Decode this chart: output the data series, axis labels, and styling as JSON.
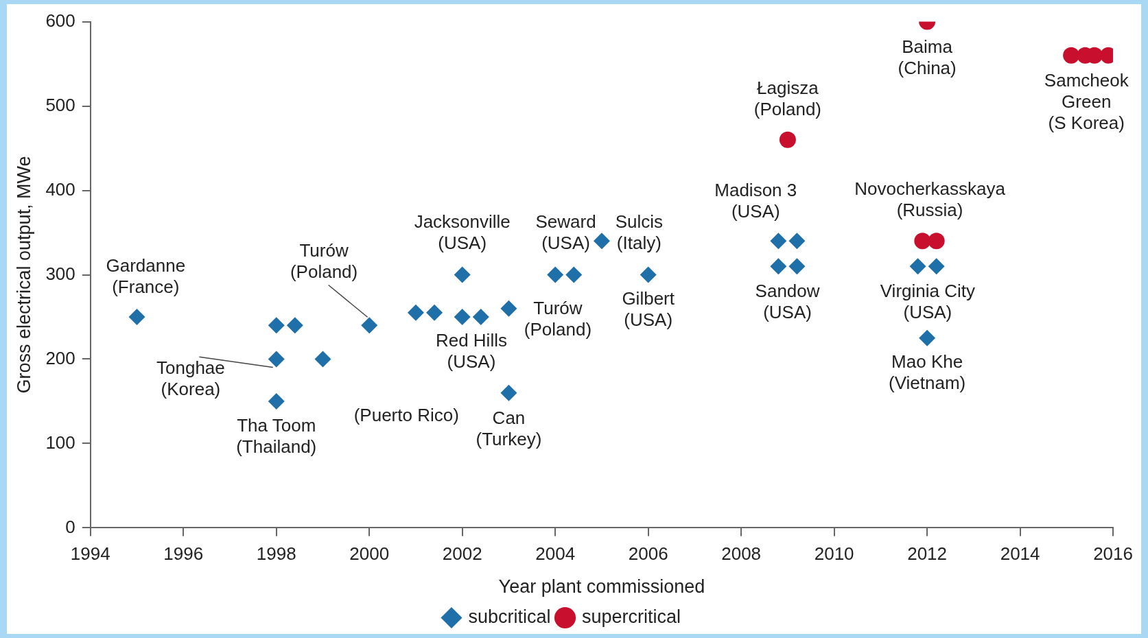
{
  "chart_data": {
    "type": "scatter",
    "xlabel": "Year plant commissioned",
    "ylabel": "Gross electrical output, MWe",
    "xlim": [
      1994,
      2016
    ],
    "xticks": [
      1994,
      1996,
      1998,
      2000,
      2002,
      2004,
      2006,
      2008,
      2010,
      2012,
      2014,
      2016
    ],
    "ylim": [
      0,
      600
    ],
    "yticks": [
      0,
      100,
      200,
      300,
      400,
      500,
      600
    ],
    "grid": false,
    "legend": "bottom",
    "series": [
      {
        "name": "subcritical",
        "color": "#1f6fa8",
        "marker": "diamond",
        "x": [
          1995,
          1998,
          1998.4,
          2000,
          1998,
          1999,
          1998,
          2001,
          2001.4,
          2002,
          2002,
          2002.4,
          2003,
          2003,
          2004,
          2004.4,
          2005,
          2006,
          2008.8,
          2009.2,
          2008.8,
          2009.2,
          2011.8,
          2012.2,
          2012
        ],
        "values": [
          250,
          240,
          240,
          240,
          200,
          200,
          150,
          255,
          255,
          300,
          250,
          250,
          260,
          160,
          300,
          300,
          340,
          300,
          340,
          340,
          310,
          310,
          310,
          310,
          225
        ]
      },
      {
        "name": "supercritical",
        "color": "#c8102e",
        "marker": "circle",
        "x": [
          2009,
          2012,
          2011.9,
          2012.2,
          2015.1,
          2015.4,
          2015.6,
          2015.9
        ],
        "values": [
          460,
          600,
          340,
          340,
          560,
          560,
          560,
          560
        ]
      }
    ],
    "annotations": [
      {
        "text": "Gardanne\n(France)",
        "x": 1995,
        "y": 250
      },
      {
        "text": "Turów\n(Poland)",
        "x": 2000,
        "y": 240
      },
      {
        "text": "Tonghae\n(Korea)",
        "x": 1998,
        "y": 200
      },
      {
        "text": "Tha Toom\n(Thailand)",
        "x": 1998,
        "y": 150
      },
      "(Puerto Rico)",
      {
        "text": "Jacksonville\n(USA)",
        "x": 2002,
        "y": 300
      },
      {
        "text": "Red Hills\n(USA)",
        "x": 2002.4,
        "y": 250
      },
      {
        "text": "Can\n(Turkey)",
        "x": 2003,
        "y": 160
      },
      {
        "text": "Turów\n(Poland)",
        "x": 2003,
        "y": 260
      },
      {
        "text": "Seward\n(USA)",
        "x": 2004.4,
        "y": 300
      },
      {
        "text": "Sulcis\n(Italy)",
        "x": 2005,
        "y": 340
      },
      {
        "text": "Gilbert\n(USA)",
        "x": 2006,
        "y": 300
      },
      {
        "text": "Madison 3\n(USA)",
        "x": 2008.8,
        "y": 340
      },
      {
        "text": "Sandow\n(USA)",
        "x": 2009.2,
        "y": 310
      },
      {
        "text": "Łagisza\n(Poland)",
        "x": 2009,
        "y": 460
      },
      {
        "text": "Baima\n(China)",
        "x": 2012,
        "y": 600
      },
      {
        "text": "Novocherkasskaya\n(Russia)",
        "x": 2012.2,
        "y": 340
      },
      {
        "text": "Virginia City\n(USA)",
        "x": 2012.2,
        "y": 310
      },
      {
        "text": "Mao Khe\n(Vietnam)",
        "x": 2012,
        "y": 225
      },
      {
        "text": "Samcheok\nGreen\n(S Korea)",
        "x": 2015.6,
        "y": 560
      }
    ]
  }
}
